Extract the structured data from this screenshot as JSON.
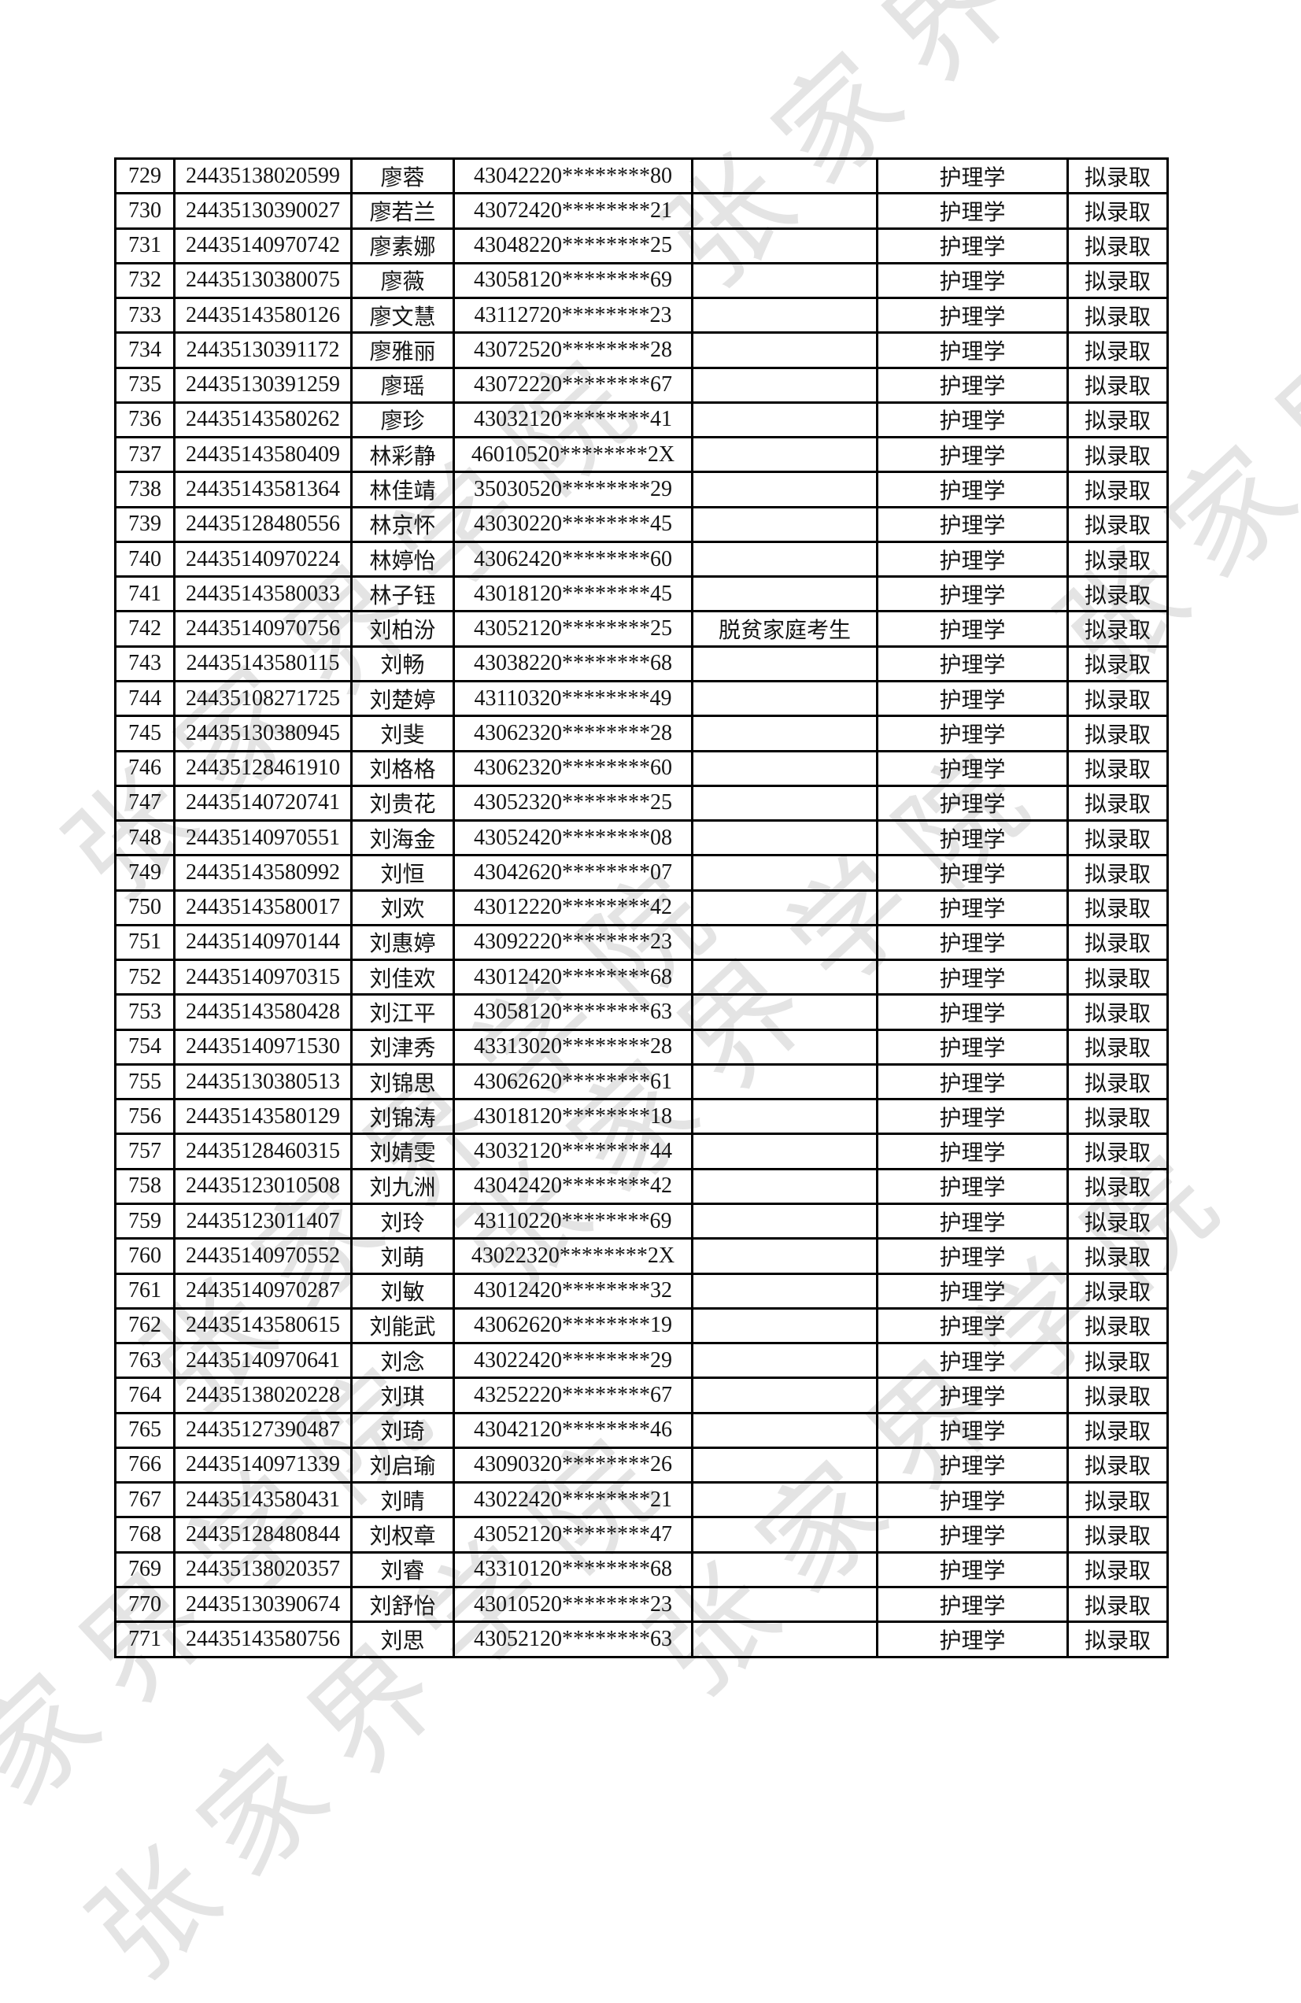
{
  "page": {
    "background": "#ffffff",
    "border_color": "#000000",
    "text_color": "#141414"
  },
  "watermark": {
    "text": "张家界学院",
    "color": "#e4e4e4"
  },
  "table": {
    "columns": [
      {
        "key": "seq"
      },
      {
        "key": "exam_id"
      },
      {
        "key": "name"
      },
      {
        "key": "id_card"
      },
      {
        "key": "note"
      },
      {
        "key": "major"
      },
      {
        "key": "status"
      }
    ],
    "rows": [
      {
        "seq": "729",
        "exam_id": "24435138020599",
        "name": "廖蓉",
        "id_card": "43042220********80",
        "note": "",
        "major": "护理学",
        "status": "拟录取"
      },
      {
        "seq": "730",
        "exam_id": "24435130390027",
        "name": "廖若兰",
        "id_card": "43072420********21",
        "note": "",
        "major": "护理学",
        "status": "拟录取"
      },
      {
        "seq": "731",
        "exam_id": "24435140970742",
        "name": "廖素娜",
        "id_card": "43048220********25",
        "note": "",
        "major": "护理学",
        "status": "拟录取"
      },
      {
        "seq": "732",
        "exam_id": "24435130380075",
        "name": "廖薇",
        "id_card": "43058120********69",
        "note": "",
        "major": "护理学",
        "status": "拟录取"
      },
      {
        "seq": "733",
        "exam_id": "24435143580126",
        "name": "廖文慧",
        "id_card": "43112720********23",
        "note": "",
        "major": "护理学",
        "status": "拟录取"
      },
      {
        "seq": "734",
        "exam_id": "24435130391172",
        "name": "廖雅丽",
        "id_card": "43072520********28",
        "note": "",
        "major": "护理学",
        "status": "拟录取"
      },
      {
        "seq": "735",
        "exam_id": "24435130391259",
        "name": "廖瑶",
        "id_card": "43072220********67",
        "note": "",
        "major": "护理学",
        "status": "拟录取"
      },
      {
        "seq": "736",
        "exam_id": "24435143580262",
        "name": "廖珍",
        "id_card": "43032120********41",
        "note": "",
        "major": "护理学",
        "status": "拟录取"
      },
      {
        "seq": "737",
        "exam_id": "24435143580409",
        "name": "林彩静",
        "id_card": "46010520********2X",
        "note": "",
        "major": "护理学",
        "status": "拟录取"
      },
      {
        "seq": "738",
        "exam_id": "24435143581364",
        "name": "林佳靖",
        "id_card": "35030520********29",
        "note": "",
        "major": "护理学",
        "status": "拟录取"
      },
      {
        "seq": "739",
        "exam_id": "24435128480556",
        "name": "林京怀",
        "id_card": "43030220********45",
        "note": "",
        "major": "护理学",
        "status": "拟录取"
      },
      {
        "seq": "740",
        "exam_id": "24435140970224",
        "name": "林婷怡",
        "id_card": "43062420********60",
        "note": "",
        "major": "护理学",
        "status": "拟录取"
      },
      {
        "seq": "741",
        "exam_id": "24435143580033",
        "name": "林子钰",
        "id_card": "43018120********45",
        "note": "",
        "major": "护理学",
        "status": "拟录取"
      },
      {
        "seq": "742",
        "exam_id": "24435140970756",
        "name": "刘柏汾",
        "id_card": "43052120********25",
        "note": "脱贫家庭考生",
        "major": "护理学",
        "status": "拟录取"
      },
      {
        "seq": "743",
        "exam_id": "24435143580115",
        "name": "刘畅",
        "id_card": "43038220********68",
        "note": "",
        "major": "护理学",
        "status": "拟录取"
      },
      {
        "seq": "744",
        "exam_id": "24435108271725",
        "name": "刘楚婷",
        "id_card": "43110320********49",
        "note": "",
        "major": "护理学",
        "status": "拟录取"
      },
      {
        "seq": "745",
        "exam_id": "24435130380945",
        "name": "刘斐",
        "id_card": "43062320********28",
        "note": "",
        "major": "护理学",
        "status": "拟录取"
      },
      {
        "seq": "746",
        "exam_id": "24435128461910",
        "name": "刘格格",
        "id_card": "43062320********60",
        "note": "",
        "major": "护理学",
        "status": "拟录取"
      },
      {
        "seq": "747",
        "exam_id": "24435140720741",
        "name": "刘贵花",
        "id_card": "43052320********25",
        "note": "",
        "major": "护理学",
        "status": "拟录取"
      },
      {
        "seq": "748",
        "exam_id": "24435140970551",
        "name": "刘海金",
        "id_card": "43052420********08",
        "note": "",
        "major": "护理学",
        "status": "拟录取"
      },
      {
        "seq": "749",
        "exam_id": "24435143580992",
        "name": "刘恒",
        "id_card": "43042620********07",
        "note": "",
        "major": "护理学",
        "status": "拟录取"
      },
      {
        "seq": "750",
        "exam_id": "24435143580017",
        "name": "刘欢",
        "id_card": "43012220********42",
        "note": "",
        "major": "护理学",
        "status": "拟录取"
      },
      {
        "seq": "751",
        "exam_id": "24435140970144",
        "name": "刘惠婷",
        "id_card": "43092220********23",
        "note": "",
        "major": "护理学",
        "status": "拟录取"
      },
      {
        "seq": "752",
        "exam_id": "24435140970315",
        "name": "刘佳欢",
        "id_card": "43012420********68",
        "note": "",
        "major": "护理学",
        "status": "拟录取"
      },
      {
        "seq": "753",
        "exam_id": "24435143580428",
        "name": "刘江平",
        "id_card": "43058120********63",
        "note": "",
        "major": "护理学",
        "status": "拟录取"
      },
      {
        "seq": "754",
        "exam_id": "24435140971530",
        "name": "刘津秀",
        "id_card": "43313020********28",
        "note": "",
        "major": "护理学",
        "status": "拟录取"
      },
      {
        "seq": "755",
        "exam_id": "24435130380513",
        "name": "刘锦思",
        "id_card": "43062620********61",
        "note": "",
        "major": "护理学",
        "status": "拟录取"
      },
      {
        "seq": "756",
        "exam_id": "24435143580129",
        "name": "刘锦涛",
        "id_card": "43018120********18",
        "note": "",
        "major": "护理学",
        "status": "拟录取"
      },
      {
        "seq": "757",
        "exam_id": "24435128460315",
        "name": "刘婧雯",
        "id_card": "43032120********44",
        "note": "",
        "major": "护理学",
        "status": "拟录取"
      },
      {
        "seq": "758",
        "exam_id": "24435123010508",
        "name": "刘九洲",
        "id_card": "43042420********42",
        "note": "",
        "major": "护理学",
        "status": "拟录取"
      },
      {
        "seq": "759",
        "exam_id": "24435123011407",
        "name": "刘玲",
        "id_card": "43110220********69",
        "note": "",
        "major": "护理学",
        "status": "拟录取"
      },
      {
        "seq": "760",
        "exam_id": "24435140970552",
        "name": "刘萌",
        "id_card": "43022320********2X",
        "note": "",
        "major": "护理学",
        "status": "拟录取"
      },
      {
        "seq": "761",
        "exam_id": "24435140970287",
        "name": "刘敏",
        "id_card": "43012420********32",
        "note": "",
        "major": "护理学",
        "status": "拟录取"
      },
      {
        "seq": "762",
        "exam_id": "24435143580615",
        "name": "刘能武",
        "id_card": "43062620********19",
        "note": "",
        "major": "护理学",
        "status": "拟录取"
      },
      {
        "seq": "763",
        "exam_id": "24435140970641",
        "name": "刘念",
        "id_card": "43022420********29",
        "note": "",
        "major": "护理学",
        "status": "拟录取"
      },
      {
        "seq": "764",
        "exam_id": "24435138020228",
        "name": "刘琪",
        "id_card": "43252220********67",
        "note": "",
        "major": "护理学",
        "status": "拟录取"
      },
      {
        "seq": "765",
        "exam_id": "24435127390487",
        "name": "刘琦",
        "id_card": "43042120********46",
        "note": "",
        "major": "护理学",
        "status": "拟录取"
      },
      {
        "seq": "766",
        "exam_id": "24435140971339",
        "name": "刘启瑜",
        "id_card": "43090320********26",
        "note": "",
        "major": "护理学",
        "status": "拟录取"
      },
      {
        "seq": "767",
        "exam_id": "24435143580431",
        "name": "刘晴",
        "id_card": "43022420********21",
        "note": "",
        "major": "护理学",
        "status": "拟录取"
      },
      {
        "seq": "768",
        "exam_id": "24435128480844",
        "name": "刘权章",
        "id_card": "43052120********47",
        "note": "",
        "major": "护理学",
        "status": "拟录取"
      },
      {
        "seq": "769",
        "exam_id": "24435138020357",
        "name": "刘睿",
        "id_card": "43310120********68",
        "note": "",
        "major": "护理学",
        "status": "拟录取"
      },
      {
        "seq": "770",
        "exam_id": "24435130390674",
        "name": "刘舒怡",
        "id_card": "43010520********23",
        "note": "",
        "major": "护理学",
        "status": "拟录取"
      },
      {
        "seq": "771",
        "exam_id": "24435143580756",
        "name": "刘思",
        "id_card": "43052120********63",
        "note": "",
        "major": "护理学",
        "status": "拟录取"
      }
    ]
  }
}
